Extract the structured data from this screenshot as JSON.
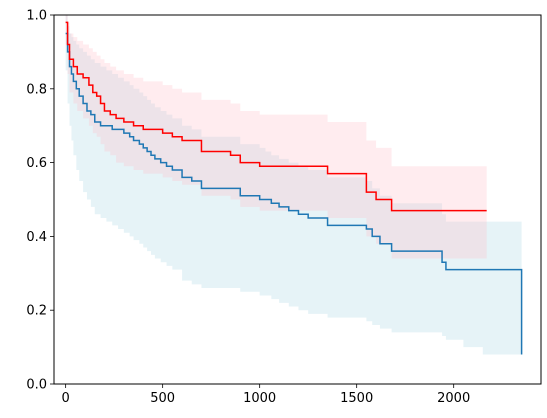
{
  "chart_data": {
    "type": "line",
    "title": "",
    "xlabel": "",
    "ylabel": "",
    "xlim": [
      -60,
      2450
    ],
    "ylim": [
      0.0,
      1.0
    ],
    "x_ticks": [
      0,
      500,
      1000,
      1500,
      2000
    ],
    "x_tick_labels": [
      "0",
      "500",
      "1000",
      "1500",
      "2000"
    ],
    "y_ticks": [
      0.0,
      0.2,
      0.4,
      0.6,
      0.8,
      1.0
    ],
    "y_tick_labels": [
      "0.0",
      "0.2",
      "0.4",
      "0.6",
      "0.8",
      "1.0"
    ],
    "grid": false,
    "legend": "none",
    "series": [
      {
        "color": "#1f77b4",
        "band_color": "#add8e6",
        "step": true,
        "x": [
          0,
          10,
          20,
          30,
          40,
          55,
          70,
          90,
          110,
          130,
          150,
          180,
          210,
          240,
          270,
          300,
          330,
          350,
          380,
          400,
          420,
          440,
          460,
          490,
          520,
          550,
          600,
          650,
          700,
          900,
          1000,
          1030,
          1060,
          1100,
          1150,
          1200,
          1250,
          1350,
          1550,
          1580,
          1620,
          1680,
          1850,
          1940,
          1960,
          2050,
          2150,
          2350
        ],
        "y": [
          0.95,
          0.9,
          0.86,
          0.84,
          0.82,
          0.8,
          0.78,
          0.76,
          0.74,
          0.73,
          0.71,
          0.7,
          0.7,
          0.69,
          0.69,
          0.68,
          0.67,
          0.66,
          0.65,
          0.64,
          0.63,
          0.62,
          0.61,
          0.6,
          0.59,
          0.58,
          0.56,
          0.55,
          0.53,
          0.51,
          0.5,
          0.5,
          0.49,
          0.48,
          0.47,
          0.46,
          0.45,
          0.43,
          0.42,
          0.4,
          0.38,
          0.36,
          0.36,
          0.33,
          0.31,
          0.31,
          0.31,
          0.08
        ],
        "lower": [
          0.85,
          0.76,
          0.7,
          0.66,
          0.62,
          0.58,
          0.55,
          0.52,
          0.5,
          0.48,
          0.46,
          0.45,
          0.44,
          0.43,
          0.42,
          0.41,
          0.4,
          0.39,
          0.38,
          0.37,
          0.36,
          0.35,
          0.34,
          0.33,
          0.32,
          0.31,
          0.28,
          0.27,
          0.26,
          0.25,
          0.24,
          0.24,
          0.23,
          0.22,
          0.21,
          0.2,
          0.19,
          0.18,
          0.17,
          0.16,
          0.15,
          0.14,
          0.14,
          0.13,
          0.12,
          0.1,
          0.08,
          0.03
        ],
        "upper": [
          1.0,
          0.97,
          0.95,
          0.94,
          0.93,
          0.92,
          0.91,
          0.9,
          0.89,
          0.88,
          0.87,
          0.86,
          0.85,
          0.84,
          0.83,
          0.82,
          0.81,
          0.8,
          0.79,
          0.78,
          0.77,
          0.76,
          0.75,
          0.74,
          0.73,
          0.72,
          0.7,
          0.69,
          0.67,
          0.65,
          0.64,
          0.63,
          0.62,
          0.61,
          0.6,
          0.59,
          0.58,
          0.56,
          0.55,
          0.53,
          0.51,
          0.49,
          0.49,
          0.46,
          0.44,
          0.44,
          0.44,
          0.25
        ]
      },
      {
        "color": "#ff0000",
        "band_color": "#ffc0cb",
        "step": true,
        "x": [
          0,
          10,
          20,
          40,
          60,
          90,
          120,
          140,
          160,
          180,
          200,
          230,
          260,
          300,
          350,
          400,
          500,
          550,
          600,
          700,
          850,
          900,
          1000,
          1200,
          1350,
          1500,
          1550,
          1600,
          1680,
          2170
        ],
        "y": [
          0.98,
          0.92,
          0.88,
          0.86,
          0.84,
          0.83,
          0.81,
          0.79,
          0.78,
          0.76,
          0.74,
          0.73,
          0.72,
          0.71,
          0.7,
          0.69,
          0.68,
          0.67,
          0.66,
          0.63,
          0.62,
          0.6,
          0.59,
          0.59,
          0.57,
          0.57,
          0.52,
          0.5,
          0.47,
          0.47
        ],
        "lower": [
          0.92,
          0.84,
          0.79,
          0.76,
          0.74,
          0.72,
          0.7,
          0.68,
          0.67,
          0.65,
          0.63,
          0.62,
          0.6,
          0.59,
          0.58,
          0.57,
          0.56,
          0.55,
          0.54,
          0.51,
          0.5,
          0.48,
          0.47,
          0.47,
          0.45,
          0.45,
          0.4,
          0.38,
          0.34,
          0.34
        ],
        "upper": [
          1.0,
          0.98,
          0.95,
          0.94,
          0.93,
          0.92,
          0.91,
          0.9,
          0.89,
          0.88,
          0.87,
          0.86,
          0.85,
          0.84,
          0.83,
          0.82,
          0.81,
          0.8,
          0.79,
          0.77,
          0.76,
          0.74,
          0.73,
          0.73,
          0.71,
          0.71,
          0.66,
          0.64,
          0.59,
          0.59
        ]
      }
    ]
  }
}
